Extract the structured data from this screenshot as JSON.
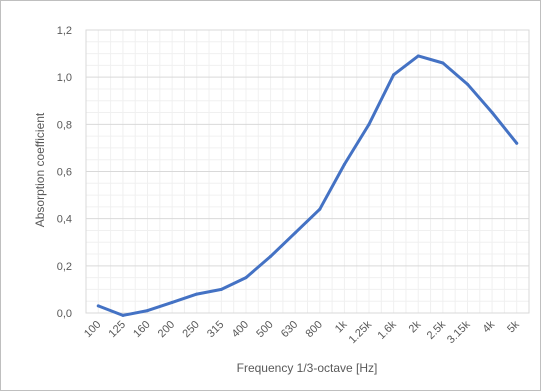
{
  "chart_data": {
    "type": "line",
    "title": "",
    "xlabel": "Frequency 1/3-octave [Hz]",
    "ylabel": "Absorption coefficient",
    "categories": [
      "100",
      "125",
      "160",
      "200",
      "250",
      "315",
      "400",
      "500",
      "630",
      "800",
      "1k",
      "1.25k",
      "1.6k",
      "2k",
      "2.5k",
      "3.15k",
      "4k",
      "5k"
    ],
    "series": [
      {
        "values": [
          0.03,
          -0.01,
          0.01,
          0.045,
          0.08,
          0.1,
          0.15,
          0.24,
          0.34,
          0.44,
          0.63,
          0.8,
          1.01,
          1.09,
          1.06,
          0.97,
          0.85,
          0.72
        ],
        "color": "#4472c4"
      }
    ],
    "ylim": [
      0,
      1.2
    ],
    "yticks": [
      "0,0",
      "0,2",
      "0,4",
      "0,6",
      "0,8",
      "1,0",
      "1,2"
    ],
    "ytick_values": [
      0,
      0.2,
      0.4,
      0.6,
      0.8,
      1.0,
      1.2
    ],
    "grid": true,
    "minor_grid": true,
    "legend": "none",
    "colors": {
      "line": "#4472c4",
      "grid_major": "#d9d9d9",
      "grid_minor": "#f0f0f0",
      "text": "#595959",
      "border": "#bfbfbf"
    }
  }
}
